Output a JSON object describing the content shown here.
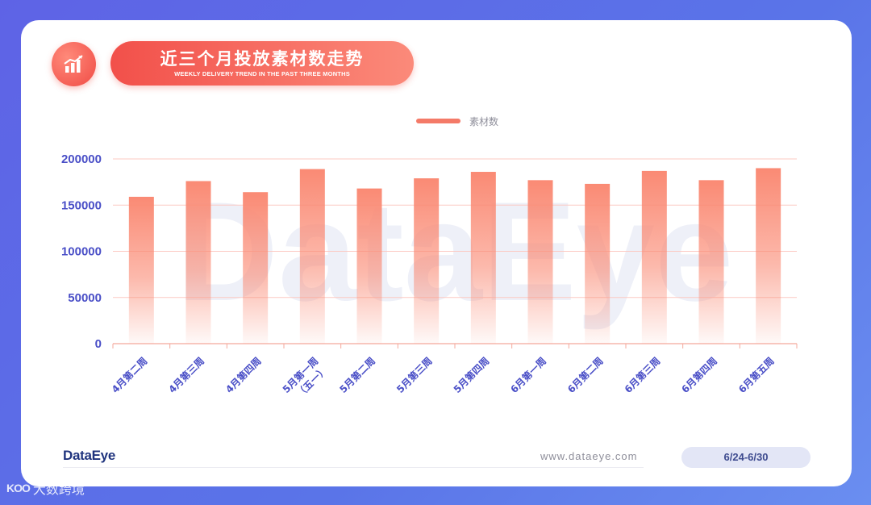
{
  "header": {
    "title": "近三个月投放素材数走势",
    "subtitle": "WEEKLY DELIVERY TREND IN THE PAST THREE MONTHS",
    "icon": "bar-chart-icon"
  },
  "chart_data": {
    "type": "bar",
    "categories": [
      "4月第二周",
      "4月第三周",
      "4月第四周",
      "5月第一周\n（五一）",
      "5月第二周",
      "5月第三周",
      "5月第四周",
      "6月第一周",
      "6月第二周",
      "6月第三周",
      "6月第四周",
      "6月第五周"
    ],
    "series": [
      {
        "name": "素材数",
        "values": [
          159000,
          176000,
          164000,
          189000,
          168000,
          179000,
          186000,
          177000,
          173000,
          187000,
          177000,
          190000
        ]
      }
    ],
    "ylim": [
      0,
      200000
    ],
    "yticks": [
      0,
      50000,
      100000,
      150000,
      200000
    ],
    "grid": true,
    "legend_position": "top-center",
    "bar_color": "#fa8a74",
    "watermark": "DataEye"
  },
  "footer": {
    "brand": "DataEye",
    "url": "www.dataeye.com",
    "date_range": "6/24-6/30"
  },
  "corner": {
    "mark": "KOO",
    "text": "大数跨境"
  }
}
